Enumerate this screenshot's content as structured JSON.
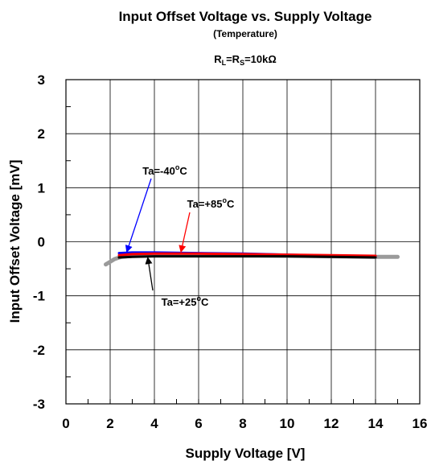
{
  "chart_data": {
    "type": "line",
    "title": "Input Offset Voltage vs. Supply Voltage",
    "subtitle": "(Temperature)",
    "condition": {
      "prefix1": "R",
      "sub1": "L",
      "mid": "=R",
      "sub2": "S",
      "suffix": "=10kΩ"
    },
    "xlabel": "Supply Voltage [V]",
    "ylabel": "Input Offset Voltage [mV]",
    "xlim": [
      0,
      16
    ],
    "ylim": [
      -3,
      3
    ],
    "x_ticks": [
      "0",
      "2",
      "4",
      "6",
      "8",
      "10",
      "12",
      "14",
      "16"
    ],
    "y_ticks": [
      "3",
      "2",
      "1",
      "0",
      "-1",
      "-2",
      "-3"
    ],
    "grid": true,
    "series": [
      {
        "name": "Ta=+25°C",
        "color": "#9a9a9a",
        "x": [
          1.8,
          2.0,
          2.2,
          2.5,
          3,
          4,
          6,
          8,
          10,
          12,
          14,
          15
        ],
        "y": [
          -0.42,
          -0.37,
          -0.32,
          -0.28,
          -0.26,
          -0.25,
          -0.25,
          -0.25,
          -0.26,
          -0.27,
          -0.28,
          -0.28
        ]
      },
      {
        "name": "Ta=-40°C",
        "color": "#0000ff",
        "x": [
          2.4,
          3,
          4,
          6,
          8,
          10,
          12,
          14
        ],
        "y": [
          -0.21,
          -0.2,
          -0.2,
          -0.21,
          -0.22,
          -0.24,
          -0.26,
          -0.27
        ]
      },
      {
        "name": "Ta=+85°C",
        "color": "#ff0000",
        "x": [
          2.4,
          3,
          4,
          6,
          8,
          10,
          12,
          14
        ],
        "y": [
          -0.25,
          -0.23,
          -0.22,
          -0.22,
          -0.23,
          -0.24,
          -0.25,
          -0.26
        ]
      },
      {
        "name": "Ta=+25°C",
        "color": "#000000",
        "x": [
          2.4,
          3,
          4,
          6,
          8,
          10,
          12,
          14
        ],
        "y": [
          -0.29,
          -0.28,
          -0.27,
          -0.27,
          -0.27,
          -0.27,
          -0.28,
          -0.29
        ]
      }
    ],
    "annotations": [
      {
        "prefix": "Ta=-40",
        "sup": "o",
        "suffix": "C",
        "color": "#0000ff",
        "arrow_to": [
          2.75,
          -0.19
        ]
      },
      {
        "prefix": "Ta=+85",
        "sup": "o",
        "suffix": "C",
        "color": "#ff0000",
        "arrow_to": [
          5.2,
          -0.19
        ]
      },
      {
        "prefix": "Ta=+25",
        "sup": "o",
        "suffix": "C",
        "color": "#000000",
        "arrow_to": [
          3.7,
          -0.29
        ]
      }
    ]
  }
}
